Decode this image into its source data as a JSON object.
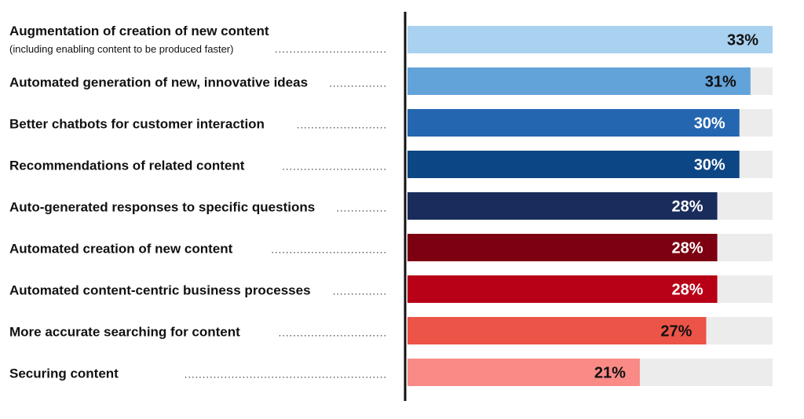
{
  "chart_data": {
    "type": "bar",
    "orientation": "horizontal",
    "categories": [
      "Augmentation of creation of new content",
      "Automated generation of new, innovative ideas",
      "Better chatbots for customer interaction",
      "Recommendations of related content",
      "Auto-generated responses to specific questions",
      "Automated creation of new content",
      "Automated content-centric business processes",
      "More accurate searching for content",
      "Securing content"
    ],
    "category_sublabels": [
      "(including enabling content to be produced faster)",
      "",
      "",
      "",
      "",
      "",
      "",
      "",
      ""
    ],
    "values": [
      33,
      31,
      30,
      30,
      28,
      28,
      28,
      27,
      21
    ],
    "value_labels": [
      "33%",
      "31%",
      "30%",
      "30%",
      "28%",
      "28%",
      "28%",
      "27%",
      "21%"
    ],
    "xlim": [
      0,
      33
    ],
    "unit": "%",
    "bar_colors": [
      "#a9d1f0",
      "#62a3da",
      "#2466b0",
      "#0d4684",
      "#192c5c",
      "#7c0011",
      "#b80017",
      "#eb5447",
      "#f98a86"
    ],
    "label_colors": [
      "#111111",
      "#111111",
      "#ffffff",
      "#ffffff",
      "#ffffff",
      "#ffffff",
      "#ffffff",
      "#111111",
      "#111111"
    ],
    "track_color": "#ececec",
    "axis_color": "#111111",
    "grid": false,
    "legend": false
  }
}
